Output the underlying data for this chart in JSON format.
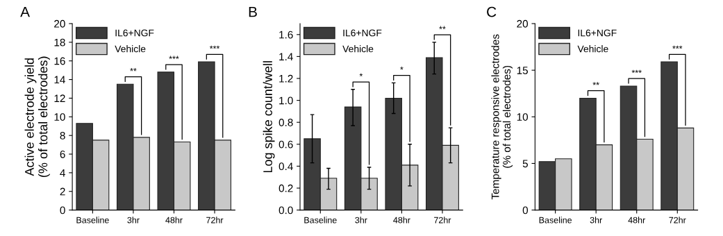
{
  "chart_data": [
    {
      "type": "bar",
      "title": "A",
      "ylabel": "Active electrode yield\n(% of total electrodes)",
      "categories": [
        "Baseline",
        "3hr",
        "48hr",
        "72hr"
      ],
      "series": [
        {
          "name": "IL6+NGF",
          "color": "#3c3c3c",
          "values": [
            9.3,
            13.5,
            14.8,
            15.9
          ]
        },
        {
          "name": "Vehicle",
          "color": "#c8c8c8",
          "values": [
            7.5,
            7.8,
            7.3,
            7.5
          ]
        }
      ],
      "ylim": [
        0,
        20
      ],
      "yticks": [
        0,
        2,
        4,
        6,
        8,
        10,
        12,
        14,
        16,
        18,
        20
      ],
      "grid": false,
      "legend": "top left",
      "annotations": [
        "**",
        "***",
        "***"
      ]
    },
    {
      "type": "bar",
      "title": "B",
      "ylabel": "Log spike count/well",
      "categories": [
        "Baseline",
        "3hr",
        "48hr",
        "72hr"
      ],
      "series": [
        {
          "name": "IL6+NGF",
          "color": "#3c3c3c",
          "values": [
            0.65,
            0.94,
            1.02,
            1.39
          ],
          "errors": [
            [
              0.43,
              0.87
            ],
            [
              0.77,
              1.1
            ],
            [
              0.88,
              1.16
            ],
            [
              1.24,
              1.53
            ]
          ]
        },
        {
          "name": "Vehicle",
          "color": "#c8c8c8",
          "values": [
            0.29,
            0.29,
            0.41,
            0.59
          ],
          "errors": [
            [
              0.19,
              0.38
            ],
            [
              0.19,
              0.39
            ],
            [
              0.22,
              0.6
            ],
            [
              0.43,
              0.75
            ]
          ]
        }
      ],
      "ylim": [
        0,
        1.7
      ],
      "yticks": [
        {
          "value": 0,
          "label": "0.0"
        },
        0.2,
        0.4,
        0.6,
        0.8,
        {
          "value": 1,
          "label": "1.0"
        },
        1.2,
        1.4,
        1.6
      ],
      "grid": false,
      "legend": "top left",
      "annotations": [
        "*",
        "*",
        "**"
      ]
    },
    {
      "type": "bar",
      "title": "C",
      "ylabel": "Temperature responsive electrodes\n(% of total electrodes)",
      "categories": [
        "Baseline",
        "3hr",
        "48hr",
        "72hr"
      ],
      "series": [
        {
          "name": "IL6+NGF",
          "color": "#3c3c3c",
          "values": [
            5.2,
            12.0,
            13.3,
            15.9
          ]
        },
        {
          "name": "Vehicle",
          "color": "#c8c8c8",
          "values": [
            5.5,
            7.0,
            7.6,
            8.8
          ]
        }
      ],
      "ylim": [
        0,
        20
      ],
      "yticks": [
        0,
        5,
        10,
        15,
        20
      ],
      "grid": false,
      "legend": "top left",
      "annotations": [
        "**",
        "***",
        "***"
      ]
    }
  ]
}
